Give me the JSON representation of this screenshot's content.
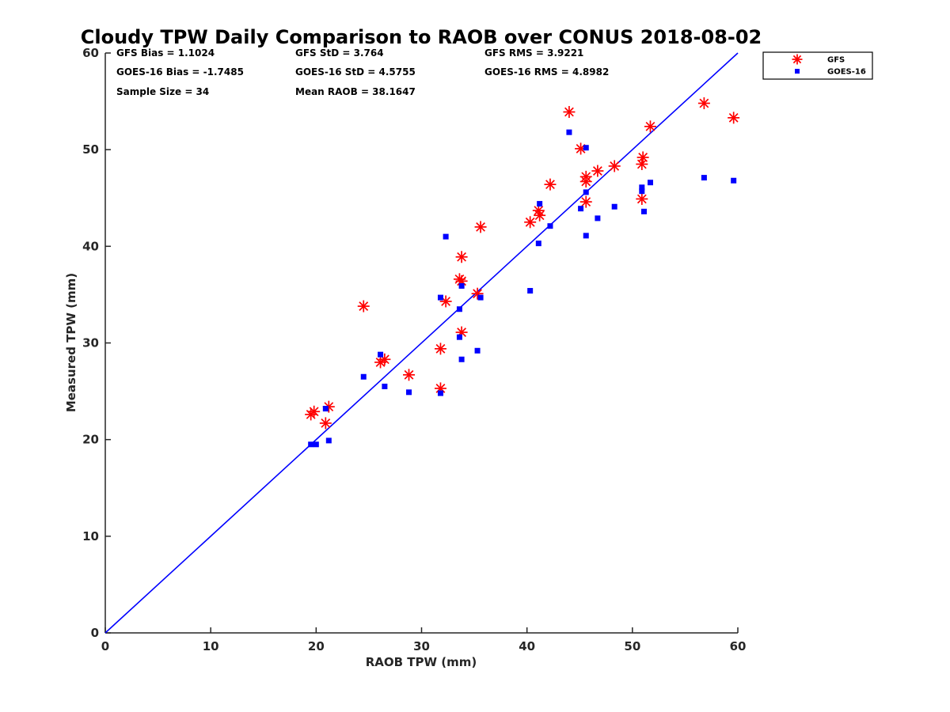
{
  "chart_data": {
    "type": "scatter",
    "title": "Cloudy TPW Daily Comparison to RAOB over CONUS 2018-08-02",
    "xlabel": "RAOB TPW (mm)",
    "ylabel": "Measured TPW (mm)",
    "xlim": [
      0,
      60
    ],
    "ylim": [
      0,
      60
    ],
    "xticks": [
      "0",
      "10",
      "20",
      "30",
      "40",
      "50",
      "60"
    ],
    "yticks": [
      "0",
      "10",
      "20",
      "30",
      "40",
      "50",
      "60"
    ],
    "grid": false,
    "legend_position": "outside-top-right",
    "reference_line": {
      "type": "one-to-one",
      "color": "#0000ff"
    },
    "stats": [
      {
        "text": "GFS Bias = 1.1024"
      },
      {
        "text": "GFS StD = 3.764"
      },
      {
        "text": "GFS RMS = 3.9221"
      },
      {
        "text": "GOES-16 Bias = -1.7485"
      },
      {
        "text": "GOES-16 StD = 4.5755"
      },
      {
        "text": "GOES-16 RMS = 4.8982"
      },
      {
        "text": "Sample Size = 34"
      },
      {
        "text": "Mean RAOB = 38.1647"
      }
    ],
    "series": [
      {
        "name": "GFS",
        "marker": "asterisk",
        "color": "#ff0000",
        "points": [
          [
            19.5,
            22.6
          ],
          [
            19.8,
            22.9
          ],
          [
            20.9,
            21.7
          ],
          [
            21.2,
            23.4
          ],
          [
            24.5,
            33.8
          ],
          [
            26.1,
            28.0
          ],
          [
            26.5,
            28.3
          ],
          [
            28.8,
            26.7
          ],
          [
            31.8,
            29.4
          ],
          [
            31.8,
            25.3
          ],
          [
            32.3,
            34.3
          ],
          [
            33.6,
            36.6
          ],
          [
            33.8,
            36.4
          ],
          [
            33.8,
            38.9
          ],
          [
            33.8,
            31.1
          ],
          [
            35.3,
            35.1
          ],
          [
            35.6,
            42.0
          ],
          [
            40.3,
            42.5
          ],
          [
            41.1,
            43.7
          ],
          [
            41.2,
            43.2
          ],
          [
            42.2,
            46.4
          ],
          [
            44.0,
            53.9
          ],
          [
            45.1,
            50.1
          ],
          [
            45.6,
            47.2
          ],
          [
            45.6,
            46.7
          ],
          [
            45.6,
            44.6
          ],
          [
            46.7,
            47.8
          ],
          [
            48.3,
            48.3
          ],
          [
            50.9,
            48.5
          ],
          [
            51.0,
            49.2
          ],
          [
            50.9,
            44.9
          ],
          [
            51.7,
            52.4
          ],
          [
            56.8,
            54.8
          ],
          [
            59.6,
            53.3
          ]
        ]
      },
      {
        "name": "GOES-16",
        "marker": "square",
        "color": "#0000ff",
        "points": [
          [
            19.5,
            19.5
          ],
          [
            20.0,
            19.5
          ],
          [
            20.9,
            23.2
          ],
          [
            21.2,
            19.9
          ],
          [
            24.5,
            26.5
          ],
          [
            26.1,
            28.8
          ],
          [
            26.5,
            25.5
          ],
          [
            28.8,
            24.9
          ],
          [
            31.8,
            24.8
          ],
          [
            31.8,
            34.7
          ],
          [
            32.3,
            41.0
          ],
          [
            33.6,
            30.6
          ],
          [
            33.6,
            33.5
          ],
          [
            33.8,
            35.9
          ],
          [
            33.8,
            28.3
          ],
          [
            35.3,
            29.2
          ],
          [
            35.6,
            34.7
          ],
          [
            40.3,
            35.4
          ],
          [
            41.1,
            40.3
          ],
          [
            41.2,
            44.4
          ],
          [
            42.2,
            42.1
          ],
          [
            44.0,
            51.8
          ],
          [
            45.1,
            43.9
          ],
          [
            45.6,
            50.2
          ],
          [
            45.6,
            45.6
          ],
          [
            45.6,
            41.1
          ],
          [
            46.7,
            42.9
          ],
          [
            48.3,
            44.1
          ],
          [
            50.9,
            46.1
          ],
          [
            50.9,
            45.7
          ],
          [
            51.1,
            43.6
          ],
          [
            51.7,
            46.6
          ],
          [
            56.8,
            47.1
          ],
          [
            59.6,
            46.8
          ]
        ]
      }
    ]
  }
}
